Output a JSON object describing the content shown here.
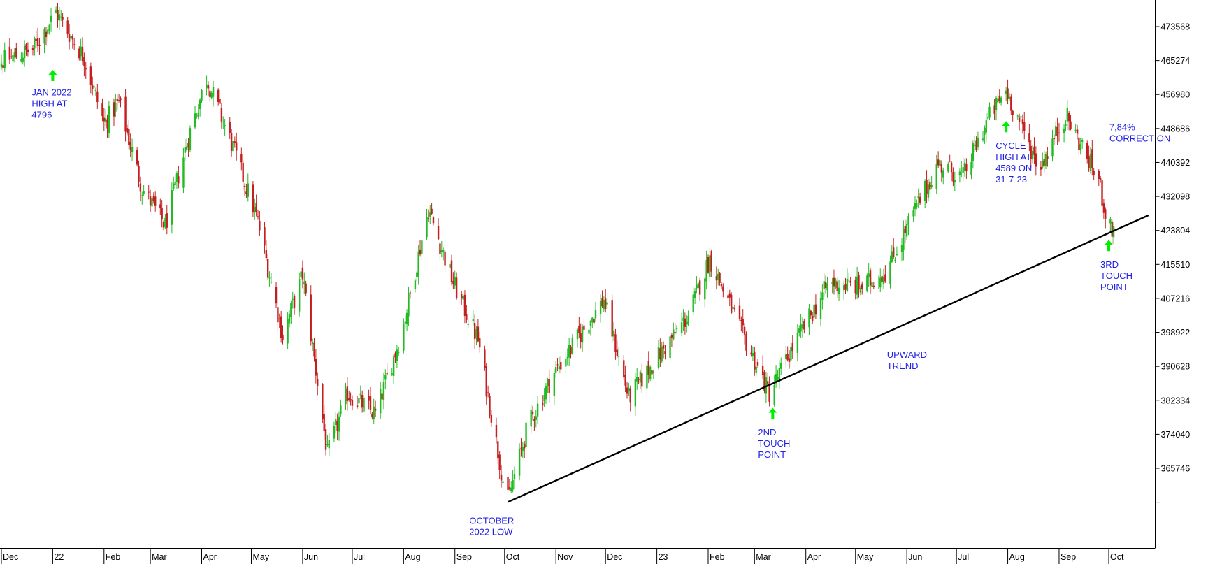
{
  "chart_data": {
    "type": "candlestick",
    "title": "",
    "xlabel": "",
    "ylabel": "",
    "y_axis_side": "right",
    "grid": false,
    "ylim": [
      353000,
      478000
    ],
    "x_tick_labels": [
      {
        "label": "Dec",
        "date": "2021-12-01"
      },
      {
        "label": "22",
        "date": "2022-01-01"
      },
      {
        "label": "Feb",
        "date": "2022-02-01"
      },
      {
        "label": "Mar",
        "date": "2022-03-01"
      },
      {
        "label": "Apr",
        "date": "2022-04-01"
      },
      {
        "label": "May",
        "date": "2022-05-01"
      },
      {
        "label": "Jun",
        "date": "2022-06-01"
      },
      {
        "label": "Jul",
        "date": "2022-07-01"
      },
      {
        "label": "Aug",
        "date": "2022-08-01"
      },
      {
        "label": "Sep",
        "date": "2022-09-01"
      },
      {
        "label": "Oct",
        "date": "2022-10-01"
      },
      {
        "label": "Nov",
        "date": "2022-11-01"
      },
      {
        "label": "Dec",
        "date": "2022-12-01"
      },
      {
        "label": "23",
        "date": "2023-01-01"
      },
      {
        "label": "Feb",
        "date": "2023-02-01"
      },
      {
        "label": "Mar",
        "date": "2023-03-01"
      },
      {
        "label": "Apr",
        "date": "2023-04-01"
      },
      {
        "label": "May",
        "date": "2023-05-01"
      },
      {
        "label": "Jun",
        "date": "2023-06-01"
      },
      {
        "label": "Jul",
        "date": "2023-07-01"
      },
      {
        "label": "Aug",
        "date": "2023-08-01"
      },
      {
        "label": "Sep",
        "date": "2023-09-01"
      },
      {
        "label": "Oct",
        "date": "2023-10-01"
      }
    ],
    "y_ticks": [
      365746,
      374040,
      382334,
      390628,
      398922,
      407216,
      415510,
      423804,
      432098,
      440392,
      448686,
      456980,
      465274,
      473568
    ],
    "y_tick_labels": [
      "365746",
      "374040",
      "382334",
      "390628",
      "398922",
      "407216",
      "415510",
      "423804",
      "432098",
      "440392",
      "448686",
      "456980",
      "465274",
      "473568"
    ],
    "price_path": [
      {
        "date": "2021-12-01",
        "value": 465000
      },
      {
        "date": "2021-12-20",
        "value": 468000
      },
      {
        "date": "2022-01-03",
        "value": 477000
      },
      {
        "date": "2022-01-20",
        "value": 466000
      },
      {
        "date": "2022-02-01",
        "value": 450000
      },
      {
        "date": "2022-02-10",
        "value": 455000
      },
      {
        "date": "2022-02-24",
        "value": 434000
      },
      {
        "date": "2022-03-10",
        "value": 425000
      },
      {
        "date": "2022-03-25",
        "value": 448000
      },
      {
        "date": "2022-04-04",
        "value": 461000
      },
      {
        "date": "2022-04-20",
        "value": 444000
      },
      {
        "date": "2022-05-05",
        "value": 426000
      },
      {
        "date": "2022-05-20",
        "value": 398000
      },
      {
        "date": "2022-06-01",
        "value": 413000
      },
      {
        "date": "2022-06-16",
        "value": 369000
      },
      {
        "date": "2022-06-28",
        "value": 384000
      },
      {
        "date": "2022-07-15",
        "value": 379000
      },
      {
        "date": "2022-07-31",
        "value": 399000
      },
      {
        "date": "2022-08-16",
        "value": 429000
      },
      {
        "date": "2022-08-31",
        "value": 411000
      },
      {
        "date": "2022-09-15",
        "value": 397000
      },
      {
        "date": "2022-09-30",
        "value": 363000
      },
      {
        "date": "2022-10-03",
        "value": 358000
      },
      {
        "date": "2022-10-15",
        "value": 376000
      },
      {
        "date": "2022-10-31",
        "value": 389000
      },
      {
        "date": "2022-11-15",
        "value": 398000
      },
      {
        "date": "2022-11-30",
        "value": 407000
      },
      {
        "date": "2022-12-15",
        "value": 383000
      },
      {
        "date": "2022-12-31",
        "value": 392000
      },
      {
        "date": "2023-01-20",
        "value": 403000
      },
      {
        "date": "2023-02-02",
        "value": 417000
      },
      {
        "date": "2023-02-20",
        "value": 400000
      },
      {
        "date": "2023-03-10",
        "value": 384000
      },
      {
        "date": "2023-03-25",
        "value": 396000
      },
      {
        "date": "2023-04-15",
        "value": 411000
      },
      {
        "date": "2023-05-05",
        "value": 410000
      },
      {
        "date": "2023-05-20",
        "value": 414000
      },
      {
        "date": "2023-06-05",
        "value": 428000
      },
      {
        "date": "2023-06-20",
        "value": 440000
      },
      {
        "date": "2023-07-05",
        "value": 437000
      },
      {
        "date": "2023-07-20",
        "value": 451000
      },
      {
        "date": "2023-07-31",
        "value": 458000
      },
      {
        "date": "2023-08-20",
        "value": 439000
      },
      {
        "date": "2023-09-05",
        "value": 452000
      },
      {
        "date": "2023-09-25",
        "value": 436000
      },
      {
        "date": "2023-10-01",
        "value": 424000
      }
    ],
    "trendline": {
      "start": {
        "date": "2022-10-03",
        "value": 357500
      },
      "end": {
        "date": "2023-10-25",
        "value": 427500
      },
      "color": "#000000"
    },
    "annotations": [
      {
        "id": "jan-high",
        "lines": [
          "JAN 2022",
          "HIGH AT",
          "4796"
        ],
        "arrow": true,
        "arrow_date": "2022-01-01",
        "arrow_value": 463000,
        "date": "2022-01-01",
        "value": 461500
      },
      {
        "id": "october-low",
        "lines": [
          "OCTOBER",
          "2022 LOW"
        ],
        "arrow": false,
        "date": "2022-10-05",
        "value": 357000
      },
      {
        "id": "second-touch",
        "lines": [
          "2ND",
          "TOUCH",
          "POINT"
        ],
        "arrow": true,
        "arrow_date": "2023-03-12",
        "arrow_value": 380500,
        "date": "2023-03-12",
        "value": 378500
      },
      {
        "id": "upward-trend",
        "lines": [
          "UPWARD",
          "TREND"
        ],
        "arrow": false,
        "date": "2023-05-20",
        "value": 397500
      },
      {
        "id": "cycle-high",
        "lines": [
          "CYCLE",
          "HIGH AT",
          "4589 ON",
          "31-7-23"
        ],
        "arrow": true,
        "arrow_date": "2023-07-31",
        "arrow_value": 450500,
        "date": "2023-07-31",
        "value": 448500
      },
      {
        "id": "correction",
        "lines": [
          "7,84%",
          "CORRECTION"
        ],
        "arrow": false,
        "date": "2023-10-25",
        "value": 453000
      },
      {
        "id": "third-touch",
        "lines": [
          "3RD",
          "TOUCH",
          "POINT"
        ],
        "arrow": true,
        "arrow_date": "2023-10-01",
        "arrow_value": 421500,
        "date": "2023-10-01",
        "value": 419500
      }
    ],
    "colors": {
      "up": "#22bb22",
      "down": "#c41e1e",
      "annotation_text": "#1f1fe6",
      "annotation_arrow": "#00ee00",
      "axis": "#000000"
    }
  }
}
